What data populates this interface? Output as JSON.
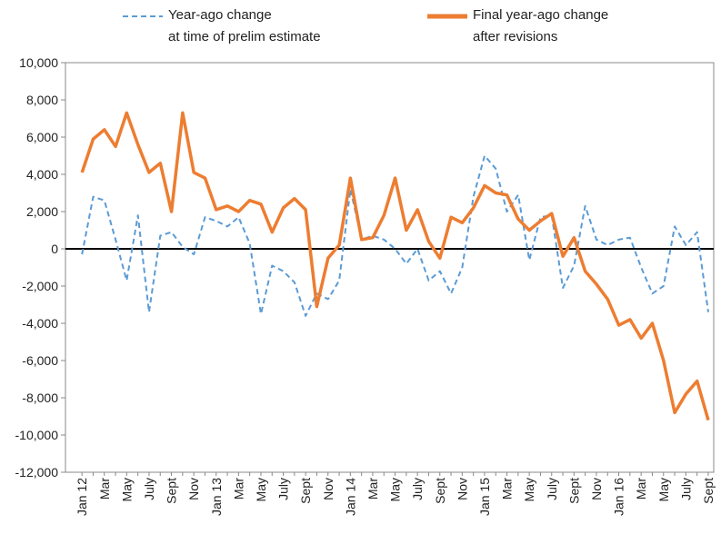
{
  "chart_data": {
    "type": "line",
    "categories": [
      "Jan 12",
      null,
      "Mar",
      null,
      "May",
      null,
      "July",
      null,
      "Sept",
      null,
      "Nov",
      null,
      "Jan 13",
      null,
      "Mar",
      null,
      "May",
      null,
      "July",
      null,
      "Sept",
      null,
      "Nov",
      null,
      "Jan 14",
      null,
      "Mar",
      null,
      "May",
      null,
      "July",
      null,
      "Sept",
      null,
      "Nov",
      null,
      "Jan 15",
      null,
      "Mar",
      null,
      "May",
      null,
      "July",
      null,
      "Sept",
      null,
      "Nov",
      null,
      "Jan 16",
      null,
      "Mar",
      null,
      "May",
      null,
      "July",
      null,
      "Sept"
    ],
    "series": [
      {
        "name": "Year-ago change\nat time of prelim estimate",
        "color": "#5b9bd5",
        "dashed": true,
        "values": [
          -300,
          2800,
          2600,
          500,
          -1700,
          1800,
          -3400,
          700,
          900,
          100,
          -300,
          1700,
          1500,
          1200,
          1700,
          300,
          -3500,
          -900,
          -1200,
          -1800,
          -3600,
          -2400,
          -2700,
          -1700,
          3200,
          500,
          700,
          500,
          0,
          -800,
          0,
          -1700,
          -1200,
          -2400,
          -1000,
          2800,
          5000,
          4300,
          2000,
          2900,
          -600,
          1700,
          1800,
          -2100,
          -900,
          2300,
          500,
          200,
          500,
          600,
          -1000,
          -2400,
          -2000,
          1200,
          200,
          900,
          -3400
        ]
      },
      {
        "name": "Final year-ago change\nafter revisions",
        "color": "#ed7d31",
        "dashed": false,
        "values": [
          4100,
          5900,
          6400,
          5500,
          7300,
          5600,
          4100,
          4600,
          2000,
          7300,
          4100,
          3800,
          2100,
          2300,
          2000,
          2600,
          2400,
          900,
          2200,
          2700,
          2100,
          -3100,
          -500,
          200,
          3800,
          500,
          600,
          1800,
          3800,
          1000,
          2100,
          400,
          -500,
          1700,
          1400,
          2200,
          3400,
          3000,
          2900,
          1600,
          1000,
          1500,
          1900,
          -400,
          600,
          -1200,
          -1900,
          -2700,
          -4100,
          -3800,
          -4800,
          -4000,
          -6000,
          -8800,
          -7800,
          -7100,
          -9200
        ]
      }
    ],
    "ylim": [
      -12000,
      10000
    ],
    "yticks": [
      {
        "value": -12000,
        "label": "-12,000"
      },
      {
        "value": -10000,
        "label": "-10,000"
      },
      {
        "value": -8000,
        "label": "-8,000"
      },
      {
        "value": -6000,
        "label": "-6,000"
      },
      {
        "value": -4000,
        "label": "-4,000"
      },
      {
        "value": -2000,
        "label": "-2,000"
      },
      0,
      {
        "value": 2000,
        "label": "2,000"
      },
      {
        "value": 4000,
        "label": "4,000"
      },
      {
        "value": 6000,
        "label": "6,000"
      },
      {
        "value": 8000,
        "label": "8,000"
      },
      {
        "value": 10000,
        "label": "10,000"
      }
    ],
    "grid": false,
    "legend": "top"
  }
}
